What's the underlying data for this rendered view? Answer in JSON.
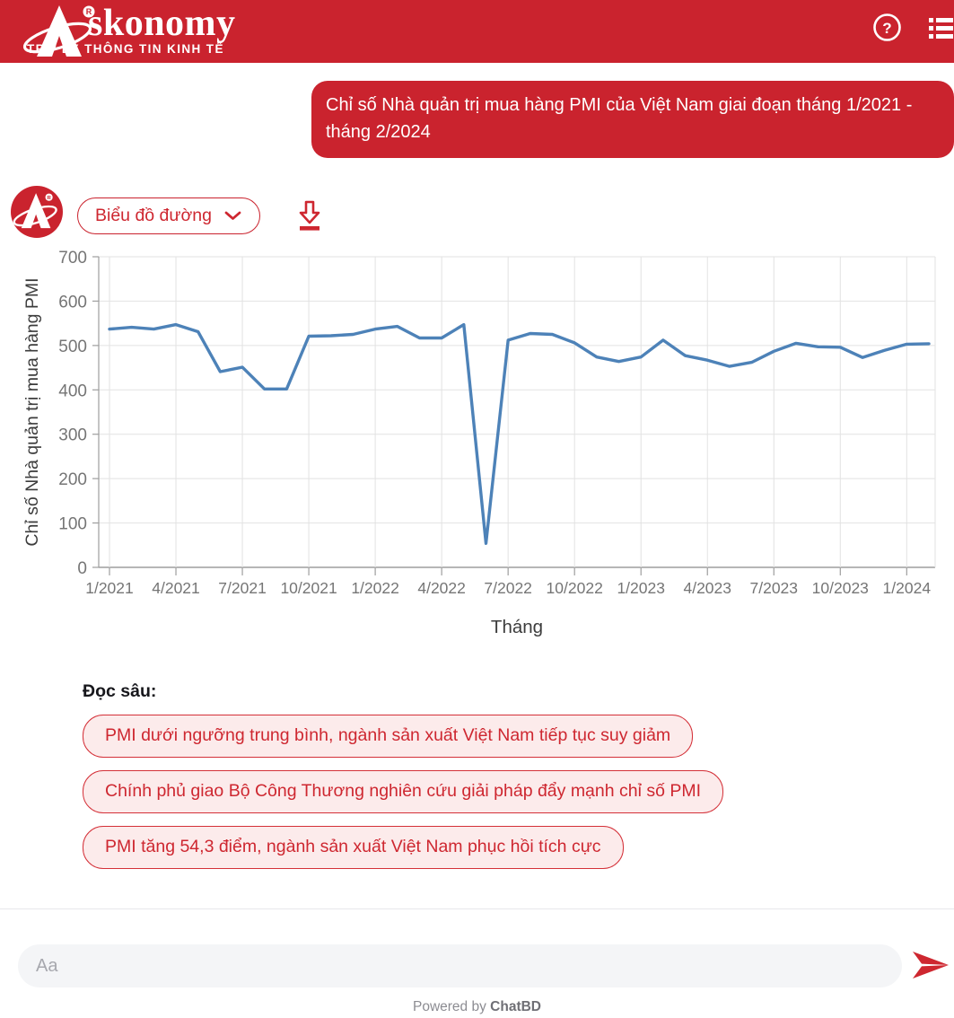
{
  "header": {
    "brand_rest": "skonomy",
    "tagline": "TRỢ LÝ THÔNG TIN KINH TẾ",
    "help_glyph": "?"
  },
  "icons": {
    "help": "question-mark-circle",
    "menu": "list",
    "chevron": "chevron-down",
    "download": "download-arrow",
    "send": "paper-plane",
    "avatar": "askonomy-logo"
  },
  "colors": {
    "accent_red": "#CA232E",
    "pill_bg": "#FCEBEB",
    "pill_text": "#CE2730",
    "line_blue": "#4D82B8",
    "grid_gray": "#E2E2E2",
    "tick_text": "#757575",
    "axis_title": "#3C3C3C"
  },
  "user_message": {
    "text": "Chỉ số Nhà quản trị mua hàng PMI của Việt Nam giai đoạn tháng 1/2021 - tháng 2/2024"
  },
  "bot": {
    "chart_type_label": "Biểu đồ đường"
  },
  "chart_data": {
    "type": "line",
    "title": "",
    "xlabel": "Tháng",
    "ylabel": "Chỉ số Nhà quản trị mua hàng PMI",
    "ylim": [
      0,
      700
    ],
    "yticks": [
      0,
      100,
      200,
      300,
      400,
      500,
      600,
      700
    ],
    "xticks": [
      "1/2021",
      "4/2021",
      "7/2021",
      "10/2021",
      "1/2022",
      "4/2022",
      "7/2022",
      "10/2022",
      "1/2023",
      "4/2023",
      "7/2023",
      "10/2023",
      "1/2024"
    ],
    "x": [
      "1/2021",
      "2/2021",
      "3/2021",
      "4/2021",
      "5/2021",
      "6/2021",
      "7/2021",
      "8/2021",
      "9/2021",
      "10/2021",
      "11/2021",
      "12/2021",
      "1/2022",
      "2/2022",
      "3/2022",
      "4/2022",
      "5/2022",
      "6/2022",
      "7/2022",
      "8/2022",
      "9/2022",
      "10/2022",
      "11/2022",
      "12/2022",
      "1/2023",
      "2/2023",
      "3/2023",
      "4/2023",
      "5/2023",
      "6/2023",
      "7/2023",
      "8/2023",
      "9/2023",
      "10/2023",
      "11/2023",
      "12/2023",
      "1/2024",
      "2/2024"
    ],
    "series": [
      {
        "name": "PMI",
        "values": [
          537,
          541,
          537,
          547,
          531,
          441,
          451,
          402,
          402,
          521,
          522,
          525,
          537,
          543,
          517,
          517,
          547,
          54,
          512,
          527,
          525,
          506,
          474,
          464,
          474,
          512,
          477,
          467,
          453,
          462,
          487,
          505,
          497,
          496,
          473,
          489,
          503,
          504
        ]
      }
    ],
    "line_color": "#4D82B8",
    "grid": true,
    "legend_position": "none"
  },
  "deep_read": {
    "label": "Đọc sâu:",
    "suggestions": [
      "PMI dưới ngưỡng trung bình, ngành sản xuất Việt Nam tiếp tục suy giảm",
      "Chính phủ giao Bộ Công Thương nghiên cứu giải pháp đẩy mạnh chỉ số PMI",
      "PMI tăng 54,3 điểm, ngành sản xuất Việt Nam phục hồi tích cực"
    ]
  },
  "composer": {
    "placeholder": "Aa"
  },
  "footer": {
    "powered_by": "Powered by",
    "brand": "ChatBD"
  }
}
